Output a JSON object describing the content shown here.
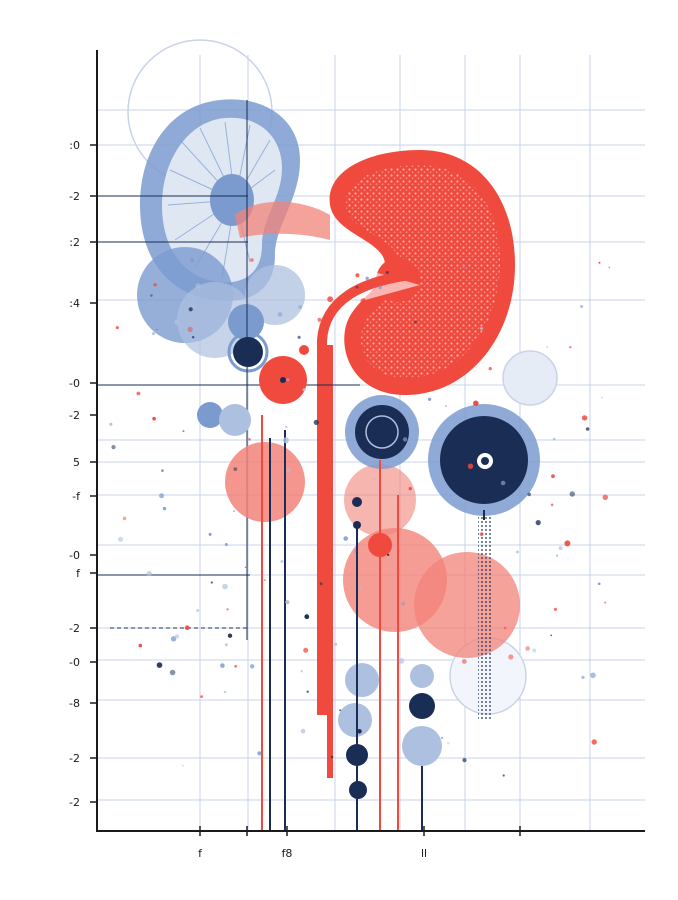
{
  "palette": {
    "background": "#ffffff",
    "grid": "#c9d3e8",
    "axis": "#1a1a1a",
    "coral": "#f04a3e",
    "salmon": "#f2837a",
    "blue": "#7b9bcf",
    "light_blue": "#aec0e0",
    "navy": "#1a2d55"
  },
  "y_tick_labels": [
    ":0",
    "-2",
    ":2",
    ":4",
    "-0",
    "-2",
    "5",
    "-f",
    "-0",
    "f",
    "-2",
    "-0",
    "-8",
    "-2",
    "-2"
  ],
  "x_tick_labels": [
    "f",
    "f8",
    "ll"
  ],
  "motifs": [
    "blue-kidney-illustration",
    "red-kidney-illustration",
    "circle-cluster",
    "vertical-stem-lines",
    "speckle-dots"
  ]
}
